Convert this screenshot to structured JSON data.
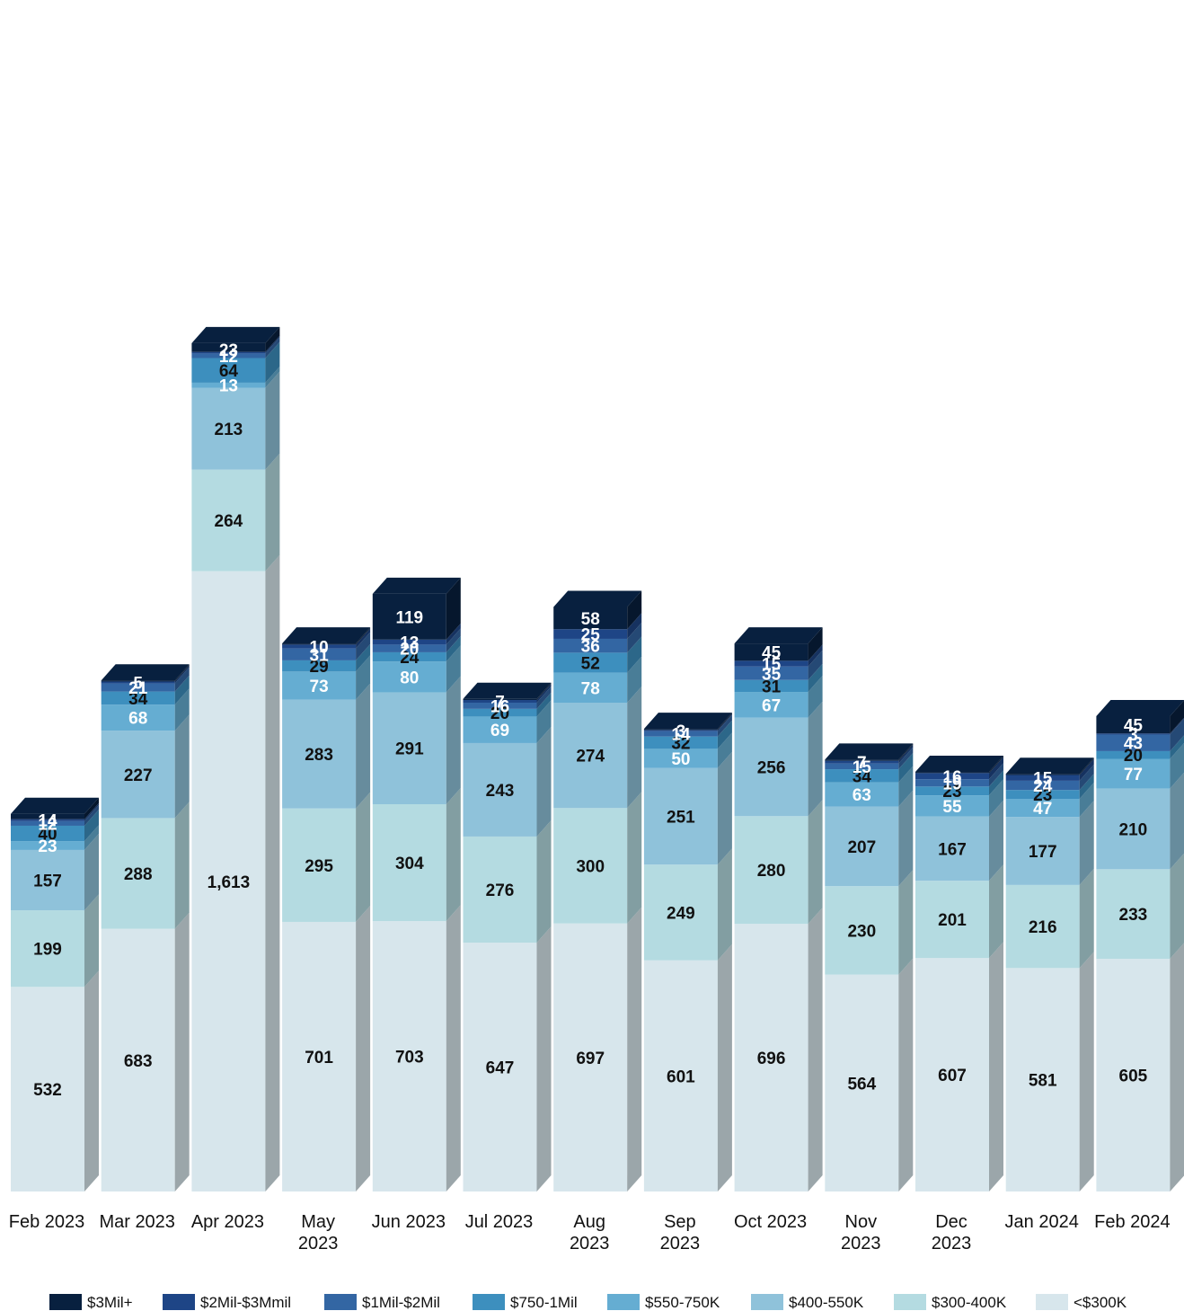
{
  "chart_data": {
    "type": "bar",
    "stacked": true,
    "style": "3d",
    "title": "",
    "xlabel": "",
    "ylabel": "",
    "grid": false,
    "legend_position": "bottom",
    "categories": [
      [
        "Feb 2023"
      ],
      [
        "Mar 2023"
      ],
      [
        "Apr 2023"
      ],
      [
        "May",
        "2023"
      ],
      [
        "Jun 2023"
      ],
      [
        "Jul 2023"
      ],
      [
        "Aug",
        "2023"
      ],
      [
        "Sep",
        "2023"
      ],
      [
        "Oct 2023"
      ],
      [
        "Nov",
        "2023"
      ],
      [
        "Dec",
        "2023"
      ],
      [
        "Jan 2024"
      ],
      [
        "Feb 2024"
      ]
    ],
    "series": [
      {
        "name": "<$300K",
        "color": "#d7e6ec",
        "label_color": "#111111",
        "values": [
          532,
          683,
          1613,
          701,
          703,
          647,
          697,
          601,
          696,
          564,
          607,
          581,
          605
        ],
        "labels": [
          "532",
          "683",
          "1,613",
          "701",
          "703",
          "647",
          "697",
          "601",
          "696",
          "564",
          "607",
          "581",
          "605"
        ]
      },
      {
        "name": "$300-400K",
        "color": "#b4dbe1",
        "label_color": "#111111",
        "values": [
          199,
          288,
          264,
          295,
          304,
          276,
          300,
          249,
          280,
          230,
          201,
          216,
          233
        ],
        "labels": [
          "199",
          "288",
          "264",
          "295",
          "304",
          "276",
          "300",
          "249",
          "280",
          "230",
          "201",
          "216",
          "233"
        ]
      },
      {
        "name": "$400-550K",
        "color": "#8fc2da",
        "label_color": "#111111",
        "values": [
          157,
          227,
          213,
          283,
          291,
          243,
          274,
          251,
          256,
          207,
          167,
          177,
          210
        ],
        "labels": [
          "157",
          "227",
          "213",
          "283",
          "291",
          "243",
          "274",
          "251",
          "256",
          "207",
          "167",
          "177",
          "210"
        ]
      },
      {
        "name": "$550-750K",
        "color": "#65add2",
        "label_color": "#ffffff",
        "values": [
          23,
          68,
          13,
          73,
          80,
          69,
          78,
          50,
          67,
          63,
          55,
          47,
          77
        ],
        "labels": [
          "23",
          "68",
          "13",
          "73",
          "80",
          "69",
          "78",
          "50",
          "67",
          "63",
          "55",
          "47",
          "77"
        ]
      },
      {
        "name": "$750-1Mil",
        "color": "#3d8fbe",
        "label_color": "#111111",
        "values": [
          40,
          34,
          64,
          29,
          24,
          20,
          52,
          32,
          31,
          34,
          23,
          23,
          20
        ],
        "labels": [
          "40",
          "34",
          "64",
          "29",
          "24",
          "20",
          "52",
          "32",
          "31",
          "34",
          "23",
          "23",
          "20"
        ]
      },
      {
        "name": "$1Mil-$2Mil",
        "color": "#3366a3",
        "label_color": "#ffffff",
        "values": [
          12,
          21,
          12,
          31,
          20,
          16,
          36,
          14,
          35,
          15,
          19,
          24,
          43
        ],
        "labels": [
          "12",
          "21",
          "12",
          "31",
          "20",
          "16",
          "36",
          "14",
          "35",
          "15",
          "19",
          "24",
          "43"
        ]
      },
      {
        "name": "$2Mil-$3Mmil",
        "color": "#1e4586",
        "label_color": "#ffffff",
        "values": [
          5,
          5,
          4,
          10,
          13,
          7,
          25,
          3,
          15,
          7,
          16,
          15,
          3
        ],
        "labels": [
          "",
          "5",
          "",
          "10",
          "13",
          "7",
          "25",
          "3",
          "15",
          "7",
          "16",
          "15",
          "3"
        ]
      },
      {
        "name": "$3Mil+",
        "color": "#08203f",
        "label_color": "#ffffff",
        "values": [
          14,
          3,
          23,
          3,
          119,
          3,
          58,
          3,
          45,
          3,
          3,
          3,
          45
        ],
        "labels": [
          "14",
          "",
          "23",
          "",
          "119",
          "",
          "58",
          "",
          "45",
          "",
          "",
          "",
          "45"
        ]
      }
    ],
    "legend_order": [
      "$3Mil+",
      "$2Mil-$3Mmil",
      "$1Mil-$2Mil",
      "$750-1Mil",
      "$550-750K",
      "$400-550K",
      "$300-400K",
      "<$300K"
    ]
  }
}
